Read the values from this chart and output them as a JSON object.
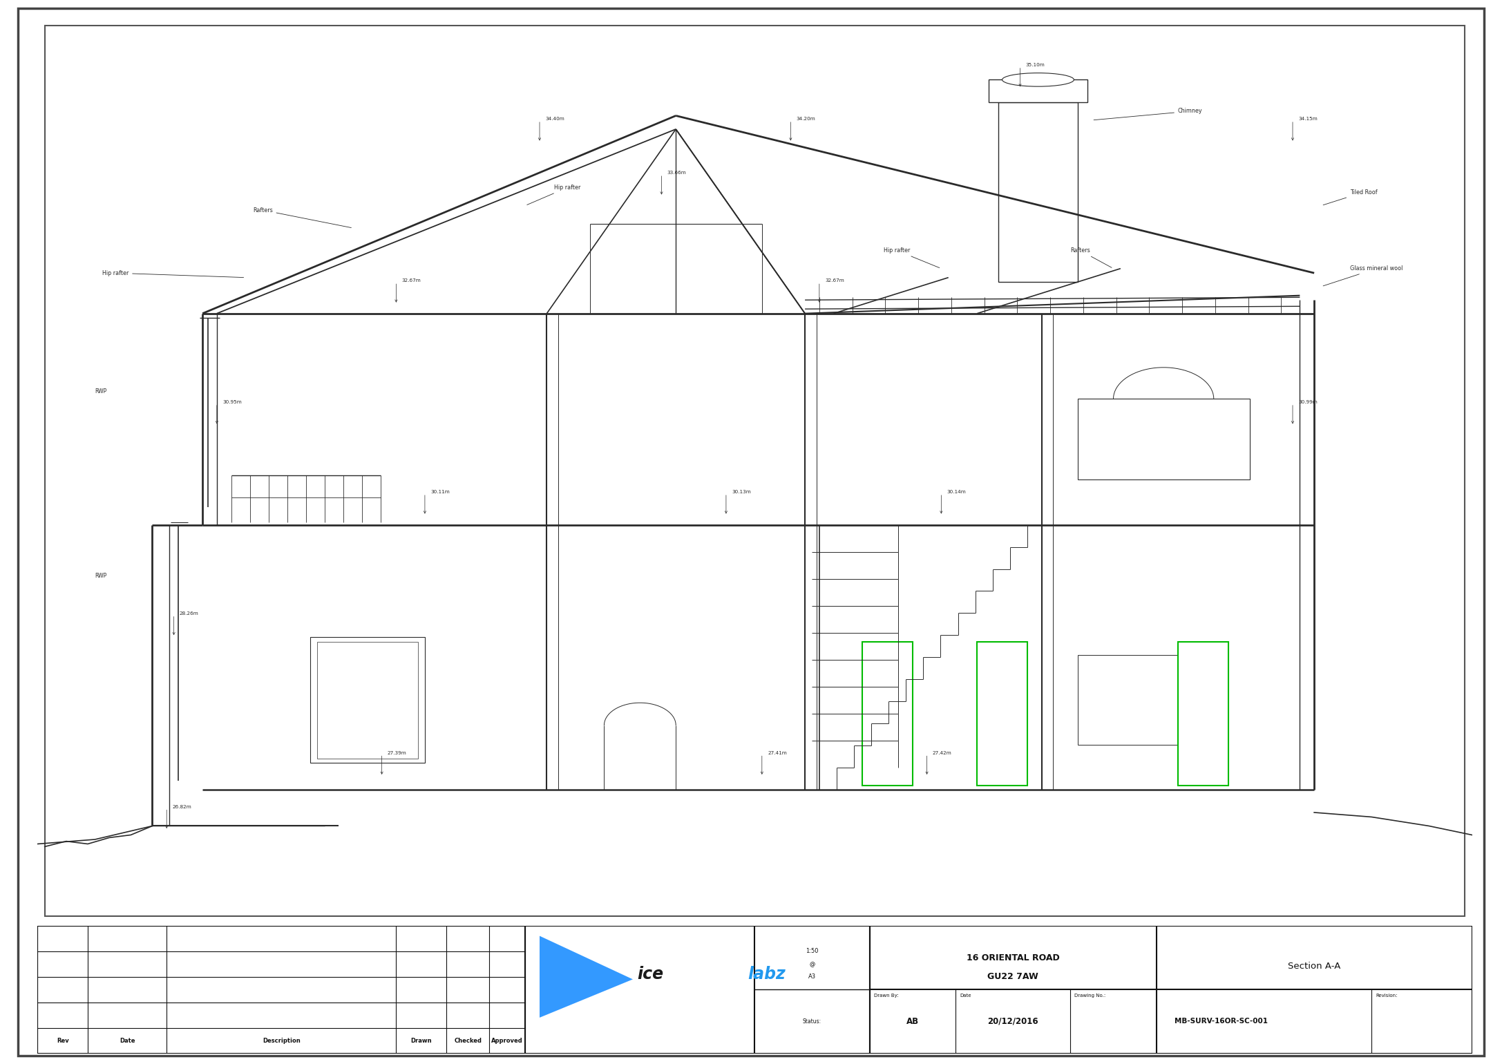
{
  "bg_color": "#ffffff",
  "lc": "#2a2a2a",
  "green": "#00bb00",
  "blue_dark": "#1a1a1a",
  "blue_logo": "#3399ff",
  "title1": "16 ORIENTAL ROAD",
  "title2": "GU22 7AW",
  "section_title": "Section A-A",
  "drawn_by": "AB",
  "date": "20/12/2016",
  "drawing_no": "MB-SURV-16OR-SC-001",
  "rev_headers": [
    "Rev",
    "Date",
    "Description",
    "Drawn",
    "Checked",
    "Approved"
  ],
  "scale_lines": [
    "1:50",
    "@",
    "A3"
  ],
  "status": "Status:",
  "drawn_by_label": "Drawn By:",
  "date_label": "Date",
  "drawing_no_label": "Drawing No.:",
  "revision_label": "Revision:"
}
